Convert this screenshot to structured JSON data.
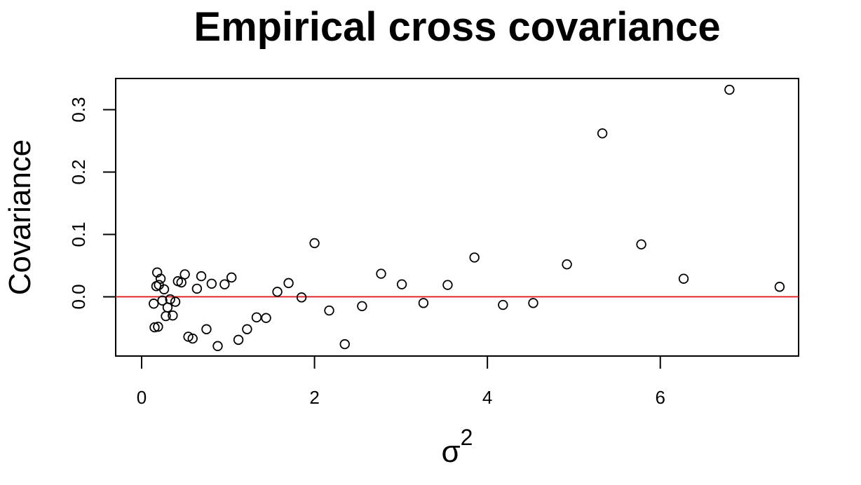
{
  "chart_data": {
    "type": "scatter",
    "title": "Empirical cross covariance",
    "xlabel": "σ",
    "xlabel_superscript": "2",
    "ylabel": "Covariance",
    "xlim": [
      -0.3,
      7.6
    ],
    "ylim": [
      -0.095,
      0.35
    ],
    "x_ticks": [
      0,
      2,
      4,
      6
    ],
    "x_tick_labels": [
      "0",
      "2",
      "4",
      "6"
    ],
    "y_ticks": [
      0.0,
      0.1,
      0.2,
      0.3
    ],
    "y_tick_labels": [
      "0.0",
      "0.1",
      "0.2",
      "0.3"
    ],
    "grid": false,
    "reference_line": {
      "y": 0,
      "color": "#e31a1c"
    },
    "marker_color": "#000000",
    "points": [
      {
        "x": 0.14,
        "y": -0.011
      },
      {
        "x": 0.15,
        "y": -0.049
      },
      {
        "x": 0.17,
        "y": 0.017
      },
      {
        "x": 0.18,
        "y": 0.039
      },
      {
        "x": 0.19,
        "y": -0.048
      },
      {
        "x": 0.2,
        "y": 0.019
      },
      {
        "x": 0.22,
        "y": 0.029
      },
      {
        "x": 0.24,
        "y": -0.006
      },
      {
        "x": 0.26,
        "y": 0.012
      },
      {
        "x": 0.28,
        "y": -0.031
      },
      {
        "x": 0.3,
        "y": -0.017
      },
      {
        "x": 0.33,
        "y": -0.004
      },
      {
        "x": 0.36,
        "y": -0.03
      },
      {
        "x": 0.39,
        "y": -0.008
      },
      {
        "x": 0.42,
        "y": 0.025
      },
      {
        "x": 0.46,
        "y": 0.023
      },
      {
        "x": 0.5,
        "y": 0.036
      },
      {
        "x": 0.54,
        "y": -0.064
      },
      {
        "x": 0.59,
        "y": -0.067
      },
      {
        "x": 0.64,
        "y": 0.013
      },
      {
        "x": 0.69,
        "y": 0.033
      },
      {
        "x": 0.75,
        "y": -0.052
      },
      {
        "x": 0.81,
        "y": 0.021
      },
      {
        "x": 0.88,
        "y": -0.079
      },
      {
        "x": 0.96,
        "y": 0.02
      },
      {
        "x": 1.04,
        "y": 0.031
      },
      {
        "x": 1.12,
        "y": -0.069
      },
      {
        "x": 1.22,
        "y": -0.052
      },
      {
        "x": 1.33,
        "y": -0.033
      },
      {
        "x": 1.44,
        "y": -0.034
      },
      {
        "x": 1.57,
        "y": 0.008
      },
      {
        "x": 1.7,
        "y": 0.022
      },
      {
        "x": 1.85,
        "y": -0.001
      },
      {
        "x": 2.0,
        "y": 0.086
      },
      {
        "x": 2.17,
        "y": -0.022
      },
      {
        "x": 2.35,
        "y": -0.076
      },
      {
        "x": 2.55,
        "y": -0.015
      },
      {
        "x": 2.77,
        "y": 0.037
      },
      {
        "x": 3.01,
        "y": 0.02
      },
      {
        "x": 3.26,
        "y": -0.01
      },
      {
        "x": 3.54,
        "y": 0.019
      },
      {
        "x": 3.85,
        "y": 0.063
      },
      {
        "x": 4.18,
        "y": -0.013
      },
      {
        "x": 4.53,
        "y": -0.01
      },
      {
        "x": 4.92,
        "y": 0.052
      },
      {
        "x": 5.33,
        "y": 0.262
      },
      {
        "x": 5.78,
        "y": 0.084
      },
      {
        "x": 6.27,
        "y": 0.029
      },
      {
        "x": 6.8,
        "y": 0.332
      },
      {
        "x": 7.38,
        "y": 0.016
      }
    ]
  }
}
